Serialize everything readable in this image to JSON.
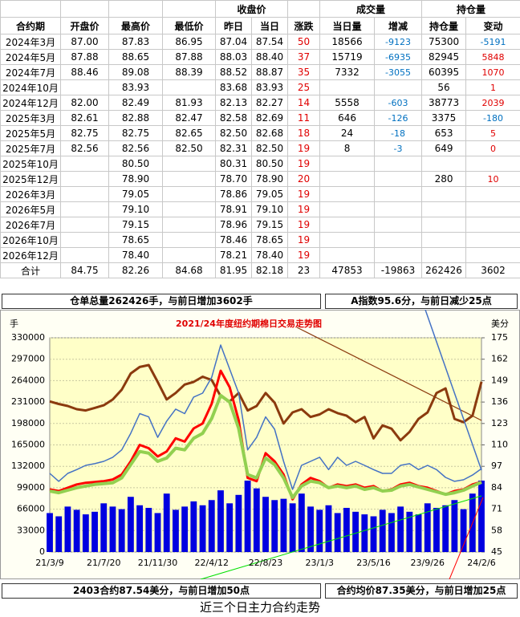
{
  "table": {
    "groups": [
      "收盘价",
      "成交量",
      "持仓量"
    ],
    "columns": [
      "合约期",
      "开盘价",
      "最高价",
      "最低价",
      "昨日",
      "当日",
      "涨跌",
      "当日量",
      "增减",
      "持仓量",
      "变动"
    ],
    "rows": [
      [
        "2024年3月",
        "87.00",
        "87.83",
        "86.95",
        "87.04",
        "87.54",
        "50",
        "18566",
        "-9123",
        "75300",
        "-5191"
      ],
      [
        "2024年5月",
        "87.88",
        "88.65",
        "87.88",
        "88.03",
        "88.40",
        "37",
        "15719",
        "-6935",
        "82945",
        "5848"
      ],
      [
        "2024年7月",
        "88.46",
        "89.08",
        "88.39",
        "88.52",
        "88.87",
        "35",
        "7332",
        "-3055",
        "60395",
        "1070"
      ],
      [
        "2024年10月",
        null,
        "83.93",
        null,
        "83.68",
        "83.93",
        "25",
        null,
        null,
        "56",
        "1"
      ],
      [
        "2024年12月",
        "82.00",
        "82.49",
        "81.93",
        "82.13",
        "82.27",
        "14",
        "5558",
        "-603",
        "38773",
        "2039"
      ],
      [
        "2025年3月",
        "82.61",
        "82.88",
        "82.47",
        "82.58",
        "82.69",
        "11",
        "646",
        "-126",
        "3375",
        "-180"
      ],
      [
        "2025年5月",
        "82.75",
        "82.75",
        "82.65",
        "82.50",
        "82.68",
        "18",
        "24",
        "-18",
        "653",
        "5"
      ],
      [
        "2025年7月",
        "82.56",
        "82.56",
        "82.50",
        "82.31",
        "82.50",
        "19",
        "8",
        "-3",
        "649",
        "0"
      ],
      [
        "2025年10月",
        null,
        "80.50",
        null,
        "80.31",
        "80.50",
        "19",
        null,
        null,
        null,
        null
      ],
      [
        "2025年12月",
        null,
        "78.90",
        null,
        "78.70",
        "78.90",
        "20",
        null,
        null,
        "280",
        "10"
      ],
      [
        "2026年3月",
        null,
        "79.05",
        null,
        "78.86",
        "79.05",
        "19",
        null,
        null,
        null,
        null
      ],
      [
        "2026年5月",
        null,
        "79.10",
        null,
        "78.91",
        "79.10",
        "19",
        null,
        null,
        null,
        null
      ],
      [
        "2026年7月",
        null,
        "79.15",
        null,
        "78.96",
        "79.15",
        "19",
        null,
        null,
        null,
        null
      ],
      [
        "2026年10月",
        null,
        "78.65",
        null,
        "78.46",
        "78.65",
        "19",
        null,
        null,
        null,
        null
      ],
      [
        "2026年12月",
        null,
        "78.40",
        null,
        "78.21",
        "78.40",
        "19",
        null,
        null,
        null,
        null
      ],
      [
        "合计",
        "84.75",
        "82.26",
        "84.68",
        "81.95",
        "82.18",
        "23",
        "47853",
        "-19863",
        "262426",
        "3602"
      ]
    ]
  },
  "banners": {
    "top_left": "仓单总量262426手，与前日增加3602手",
    "top_right": "A指数95.6分，与前日减少25点",
    "bottom_left": "2403合约87.54美分，与前日增加50点",
    "bottom_right": "合约均价87.35美分，与前日增加25点",
    "caption": "近三个日主力合约走势"
  },
  "chart_data": {
    "type": "line",
    "title": "2021/24年度纽约期棉日交易走势图",
    "y_label": "手",
    "y2_label": "美分",
    "categories": [
      "21/3/9",
      null,
      null,
      null,
      null,
      null,
      "21/7/20",
      null,
      null,
      null,
      null,
      null,
      "21/11/30",
      null,
      null,
      null,
      null,
      null,
      "22/4/12",
      null,
      null,
      null,
      null,
      null,
      "22/8/23",
      null,
      null,
      null,
      null,
      null,
      "23/1/3",
      null,
      null,
      null,
      null,
      null,
      "23/5/16",
      null,
      null,
      null,
      null,
      null,
      "23/9/26",
      null,
      null,
      null,
      null,
      null,
      "24/2/6"
    ],
    "ylim": [
      0,
      330000
    ],
    "yticks": [
      0,
      33000,
      66000,
      99000,
      132000,
      165000,
      198000,
      231000,
      264000,
      297000,
      330000
    ],
    "y2lim": [
      45,
      175
    ],
    "y2ticks": [
      45,
      58,
      71,
      84,
      97,
      110,
      123,
      136,
      149,
      162,
      175
    ],
    "grid": true,
    "series": [
      {
        "type": "bar",
        "color": "#0000e0",
        "values": [
          60000,
          55000,
          70000,
          65000,
          58000,
          62000,
          75000,
          70000,
          66000,
          85000,
          72000,
          68000,
          60000,
          90000,
          65000,
          70000,
          78000,
          72000,
          80000,
          95000,
          75000,
          88000,
          110000,
          98000,
          85000,
          80000,
          82000,
          75000,
          90000,
          70000,
          65000,
          72000,
          60000,
          68000,
          62000,
          58000,
          55000,
          65000,
          60000,
          70000,
          62000,
          58000,
          75000,
          68000,
          72000,
          80000,
          66000,
          90000,
          110000
        ]
      },
      {
        "type": "line",
        "color": "#8b3a0e",
        "values": [
          232000,
          228000,
          225000,
          220000,
          218000,
          222000,
          226000,
          235000,
          250000,
          275000,
          285000,
          288000,
          262000,
          235000,
          245000,
          258000,
          262000,
          270000,
          265000,
          240000,
          232000,
          245000,
          218000,
          225000,
          245000,
          230000,
          198000,
          215000,
          220000,
          208000,
          212000,
          220000,
          214000,
          210000,
          200000,
          208000,
          175000,
          195000,
          190000,
          172000,
          185000,
          205000,
          215000,
          245000,
          252000,
          205000,
          200000,
          210000,
          262426
        ]
      },
      {
        "type": "line",
        "axis": "y2",
        "color": "#4472c4",
        "values": [
          92.7,
          87.9,
          92.7,
          95,
          97.6,
          98.6,
          100,
          102.5,
          107,
          117,
          129,
          127,
          114.6,
          124.4,
          131.7,
          129,
          139,
          141.4,
          151,
          170.6,
          156,
          141.4,
          107,
          114.6,
          127,
          119.5,
          100,
          83,
          97.6,
          100,
          102.5,
          95,
          102.5,
          97.6,
          100,
          97.6,
          95,
          92.7,
          92.7,
          97.6,
          98.6,
          95,
          97.6,
          95,
          90.3,
          87.9,
          88.8,
          91.7,
          95.6
        ]
      },
      {
        "type": "line",
        "axis": "y2",
        "color": "#ff0000",
        "values": [
          83,
          82,
          84,
          86,
          87,
          87.5,
          88,
          89,
          92,
          100,
          110,
          108,
          103,
          106,
          114,
          112,
          120,
          123,
          135,
          155,
          145,
          125,
          90,
          88,
          105,
          100,
          92,
          77,
          86,
          90,
          88,
          84,
          86,
          85,
          86,
          84,
          85,
          82,
          83,
          86,
          87,
          85,
          84,
          82,
          80,
          82,
          83,
          86,
          87.54
        ]
      },
      {
        "type": "line",
        "axis": "y2",
        "color": "#92d050",
        "values": [
          82,
          81,
          82.5,
          84,
          85,
          86,
          86.5,
          87,
          90,
          98,
          106,
          105,
          100,
          102,
          108,
          107,
          114,
          117,
          126,
          140,
          136,
          120,
          92,
          90,
          102,
          98,
          90,
          78,
          85,
          88,
          87,
          84,
          85,
          84,
          85,
          83,
          84,
          82,
          82.5,
          85,
          86,
          84.5,
          83,
          81.5,
          80,
          81,
          82.5,
          85,
          87.35
        ]
      }
    ]
  }
}
